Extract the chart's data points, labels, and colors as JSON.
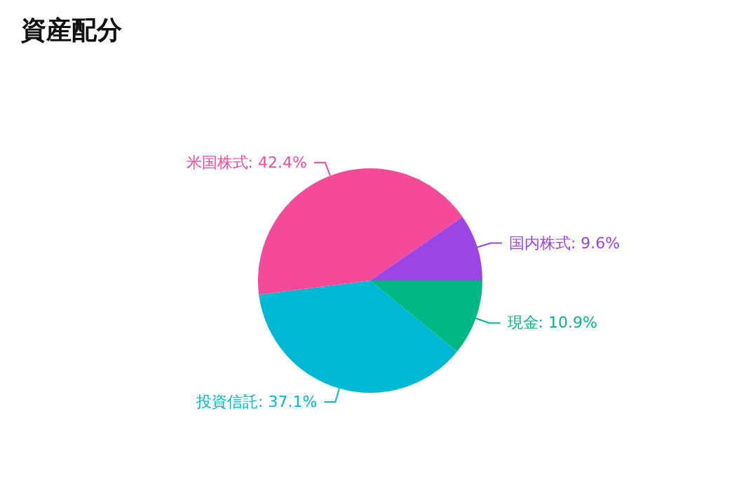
{
  "chart_data": {
    "type": "pie",
    "title": "資産配分",
    "categories": [
      "現金",
      "投資信託",
      "米国株式",
      "国内株式"
    ],
    "values": [
      10.9,
      37.1,
      42.4,
      9.6
    ],
    "value_labels": [
      "10.9%",
      "37.1%",
      "42.4%",
      "9.6%"
    ],
    "colors": [
      "#00b884",
      "#00b8d4",
      "#f44a9a",
      "#9b44e4"
    ],
    "legend": false
  }
}
